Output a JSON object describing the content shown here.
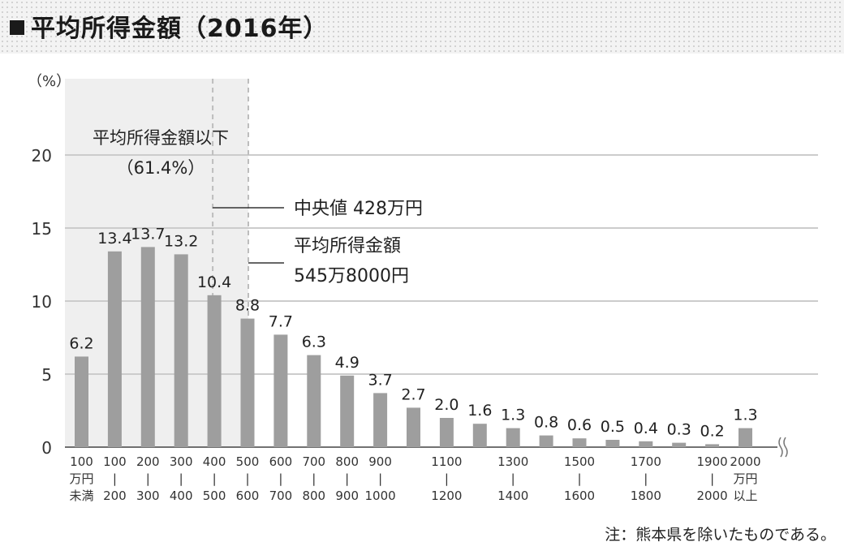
{
  "header": {
    "title": "平均所得金額（2016年）"
  },
  "note": "注：熊本県を除いたものである。",
  "annotations": {
    "below_avg_line1": "平均所得金額以下",
    "below_avg_line2": "（61.4%）",
    "median": "中央値 428万円",
    "mean_line1": "平均所得金額",
    "mean_line2": "545万8000円"
  },
  "colors": {
    "bar": "#9e9e9e",
    "shade": "#efefef",
    "grid": "#cccccc",
    "axis": "#444444"
  },
  "chart_data": {
    "type": "bar",
    "ylabel": "（%）",
    "ylim": [
      0,
      25
    ],
    "yticks": [
      0,
      5,
      10,
      15,
      20
    ],
    "grid": true,
    "categories": [
      [
        "100",
        "万円",
        "未満"
      ],
      [
        "100",
        "|",
        "200"
      ],
      [
        "200",
        "|",
        "300"
      ],
      [
        "300",
        "|",
        "400"
      ],
      [
        "400",
        "|",
        "500"
      ],
      [
        "500",
        "|",
        "600"
      ],
      [
        "600",
        "|",
        "700"
      ],
      [
        "700",
        "|",
        "800"
      ],
      [
        "800",
        "|",
        "900"
      ],
      [
        "900",
        "|",
        "1000"
      ],
      [
        "",
        "",
        ""
      ],
      [
        "1100",
        "|",
        "1200"
      ],
      [
        "",
        "",
        ""
      ],
      [
        "1300",
        "|",
        "1400"
      ],
      [
        "",
        "",
        ""
      ],
      [
        "1500",
        "|",
        "1600"
      ],
      [
        "",
        "",
        ""
      ],
      [
        "1700",
        "|",
        "1800"
      ],
      [
        "",
        "",
        ""
      ],
      [
        "1900",
        "|",
        "2000"
      ],
      [
        "2000",
        "万円",
        "以上"
      ]
    ],
    "values": [
      6.2,
      13.4,
      13.7,
      13.2,
      10.4,
      8.8,
      7.7,
      6.3,
      4.9,
      3.7,
      2.7,
      2.0,
      1.6,
      1.3,
      0.8,
      0.6,
      0.5,
      0.4,
      0.3,
      0.2,
      1.3
    ],
    "labels": [
      "6.2",
      "13.4",
      "13.7",
      "13.2",
      "10.4",
      "8.8",
      "7.7",
      "6.3",
      "4.9",
      "3.7",
      "2.7",
      "2.0",
      "1.6",
      "1.3",
      "0.8",
      "0.6",
      "0.5",
      "0.4",
      "0.3",
      "0.2",
      "1.3"
    ],
    "median": 428,
    "mean": 545.8
  }
}
